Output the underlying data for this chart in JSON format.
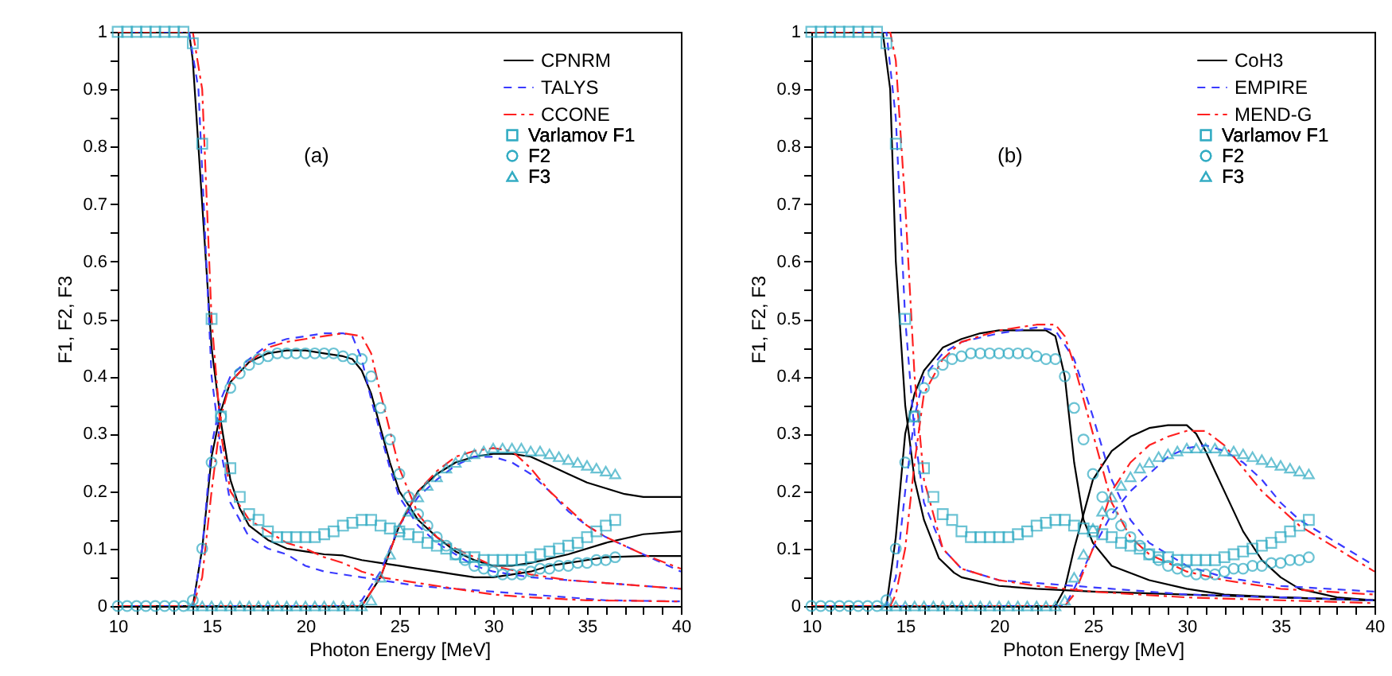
{
  "chart_data": [
    {
      "type": "line",
      "xlabel": "Photon Energy [MeV]",
      "ylabel": "F1, F2, F3",
      "annotations": [
        "(a)"
      ],
      "legend": "top right",
      "grid": false,
      "xlim": [
        10,
        40
      ],
      "ylim": [
        0,
        1
      ],
      "xticks": [
        10,
        {
          "value": 11,
          "label": null
        },
        {
          "value": 12,
          "label": null
        },
        {
          "value": 13,
          "label": null
        },
        {
          "value": 14,
          "label": null
        },
        15,
        {
          "value": 16,
          "label": null
        },
        {
          "value": 17,
          "label": null
        },
        {
          "value": 18,
          "label": null
        },
        {
          "value": 19,
          "label": null
        },
        20,
        {
          "value": 21,
          "label": null
        },
        {
          "value": 22,
          "label": null
        },
        {
          "value": 23,
          "label": null
        },
        {
          "value": 24,
          "label": null
        },
        25,
        {
          "value": 26,
          "label": null
        },
        {
          "value": 27,
          "label": null
        },
        {
          "value": 28,
          "label": null
        },
        {
          "value": 29,
          "label": null
        },
        30,
        {
          "value": 31,
          "label": null
        },
        {
          "value": 32,
          "label": null
        },
        {
          "value": 33,
          "label": null
        },
        {
          "value": 34,
          "label": null
        },
        35,
        {
          "value": 36,
          "label": null
        },
        {
          "value": 37,
          "label": null
        },
        {
          "value": 38,
          "label": null
        },
        {
          "value": 39,
          "label": null
        },
        40
      ],
      "yticks": [
        0,
        {
          "value": 0.05,
          "label": null
        },
        0.1,
        {
          "value": 0.15,
          "label": null
        },
        0.2,
        {
          "value": 0.25,
          "label": null
        },
        0.3,
        {
          "value": 0.35,
          "label": null
        },
        0.4,
        {
          "value": 0.45,
          "label": null
        },
        0.5,
        {
          "value": 0.55,
          "label": null
        },
        0.6,
        {
          "value": 0.65,
          "label": null
        },
        0.7,
        {
          "value": 0.75,
          "label": null
        },
        0.8,
        {
          "value": 0.85,
          "label": null
        },
        0.9,
        {
          "value": 0.95,
          "label": null
        },
        1
      ],
      "series": [
        {
          "name": "CPNRM",
          "color": "#000000",
          "line_style": "solid",
          "x": [
            10,
            13.8,
            14,
            15,
            15.5,
            16,
            16.5,
            17,
            18,
            19,
            20,
            21,
            22,
            23,
            24,
            25,
            26,
            27,
            28,
            29,
            30,
            31,
            32,
            33,
            34,
            35,
            36,
            38,
            40
          ],
          "values": [
            1,
            1,
            0.95,
            0.45,
            0.32,
            0.22,
            0.17,
            0.14,
            0.115,
            0.1,
            0.095,
            0.09,
            0.088,
            0.08,
            0.075,
            0.07,
            0.065,
            0.06,
            0.055,
            0.05,
            0.05,
            0.055,
            0.06,
            0.07,
            0.075,
            0.08,
            0.085,
            0.087,
            0.087
          ]
        },
        {
          "color": "#000000",
          "line_style": "solid",
          "x": [
            10,
            14,
            14.5,
            15,
            15.5,
            16,
            17,
            18,
            19,
            20,
            21,
            22,
            22.5,
            23,
            23.5,
            24,
            24.5,
            25,
            26,
            27,
            28,
            29,
            30,
            31,
            32,
            34,
            36,
            38,
            40
          ],
          "values": [
            0,
            0,
            0.1,
            0.26,
            0.34,
            0.39,
            0.425,
            0.44,
            0.445,
            0.445,
            0.44,
            0.435,
            0.43,
            0.41,
            0.37,
            0.31,
            0.25,
            0.2,
            0.15,
            0.12,
            0.095,
            0.08,
            0.07,
            0.07,
            0.075,
            0.09,
            0.11,
            0.125,
            0.13
          ]
        },
        {
          "color": "#000000",
          "line_style": "solid",
          "x": [
            10,
            23,
            24,
            25,
            26,
            27,
            28,
            29,
            30,
            31,
            32,
            33,
            34,
            35,
            36,
            37,
            38,
            40
          ],
          "values": [
            0,
            0,
            0.05,
            0.14,
            0.2,
            0.23,
            0.25,
            0.26,
            0.265,
            0.265,
            0.26,
            0.245,
            0.23,
            0.215,
            0.205,
            0.195,
            0.19,
            0.19
          ]
        },
        {
          "name": "TALYS",
          "color": "#3a3aff",
          "line_style": "dashed",
          "x": [
            10,
            13.8,
            14.3,
            15,
            15.5,
            16,
            17,
            18,
            19,
            20,
            21,
            22,
            23,
            24,
            26,
            28,
            30,
            32,
            34,
            36,
            40
          ],
          "values": [
            1,
            1,
            0.9,
            0.4,
            0.27,
            0.18,
            0.12,
            0.1,
            0.09,
            0.07,
            0.06,
            0.055,
            0.05,
            0.045,
            0.035,
            0.03,
            0.025,
            0.02,
            0.015,
            0.01,
            0.008
          ]
        },
        {
          "color": "#3a3aff",
          "line_style": "dashed",
          "x": [
            10,
            14,
            14.5,
            15,
            15.5,
            16,
            17,
            18,
            19,
            20,
            21,
            22,
            22.5,
            23,
            23.5,
            24,
            24.5,
            25,
            26,
            27,
            28,
            29,
            30,
            32,
            34,
            36,
            38,
            40
          ],
          "values": [
            0,
            0,
            0.1,
            0.28,
            0.36,
            0.4,
            0.43,
            0.455,
            0.465,
            0.47,
            0.475,
            0.475,
            0.47,
            0.43,
            0.36,
            0.3,
            0.24,
            0.19,
            0.14,
            0.11,
            0.09,
            0.07,
            0.06,
            0.05,
            0.045,
            0.04,
            0.035,
            0.03
          ]
        },
        {
          "color": "#3a3aff",
          "line_style": "dashed",
          "x": [
            10,
            22.5,
            23,
            24,
            25,
            26,
            27,
            28,
            29,
            30,
            31,
            32,
            33,
            34,
            35,
            36,
            38,
            40
          ],
          "values": [
            0,
            0,
            0.01,
            0.06,
            0.14,
            0.19,
            0.22,
            0.245,
            0.26,
            0.26,
            0.25,
            0.23,
            0.2,
            0.165,
            0.14,
            0.12,
            0.09,
            0.06
          ]
        },
        {
          "name": "CCONE",
          "color": "#ff2020",
          "line_style": "dashdot",
          "x": [
            10,
            14,
            14.5,
            15,
            15.5,
            16,
            17,
            18,
            19,
            20,
            21,
            22,
            23,
            24,
            26,
            28,
            30,
            32,
            35,
            40
          ],
          "values": [
            1,
            1,
            0.9,
            0.5,
            0.3,
            0.2,
            0.15,
            0.13,
            0.11,
            0.1,
            0.085,
            0.075,
            0.06,
            0.05,
            0.04,
            0.03,
            0.02,
            0.015,
            0.01,
            0.008
          ]
        },
        {
          "color": "#ff2020",
          "line_style": "dashdot",
          "x": [
            10,
            14,
            14.5,
            15,
            15.5,
            16,
            17,
            18,
            19,
            20,
            21,
            22,
            23,
            23.5,
            24,
            25,
            26,
            27,
            28,
            30,
            32,
            34,
            36,
            40
          ],
          "values": [
            0,
            0,
            0.05,
            0.2,
            0.33,
            0.39,
            0.425,
            0.45,
            0.46,
            0.465,
            0.47,
            0.475,
            0.47,
            0.44,
            0.37,
            0.24,
            0.16,
            0.12,
            0.1,
            0.07,
            0.055,
            0.045,
            0.04,
            0.03
          ]
        },
        {
          "color": "#ff2020",
          "line_style": "dashdot",
          "x": [
            10,
            23,
            24,
            25,
            26,
            27,
            28,
            29,
            30,
            31,
            32,
            33,
            34,
            35,
            36,
            38,
            40
          ],
          "values": [
            0,
            0,
            0.05,
            0.14,
            0.2,
            0.235,
            0.26,
            0.27,
            0.275,
            0.27,
            0.24,
            0.2,
            0.17,
            0.14,
            0.12,
            0.09,
            0.065
          ]
        },
        {
          "name": "Varlamov F1",
          "type": "scatter",
          "marker": "square",
          "color": "#2eaac2",
          "x": [
            10,
            10.5,
            11,
            11.5,
            12,
            12.5,
            13,
            13.5,
            14,
            14.5,
            15,
            15.5,
            16,
            16.5,
            17,
            17.5,
            18,
            18.5,
            19,
            19.5,
            20,
            20.5,
            21,
            21.5,
            22,
            22.5,
            23,
            23.5,
            24,
            24.5,
            25,
            25.5,
            26,
            26.5,
            27,
            27.5,
            28,
            28.5,
            29,
            29.5,
            30,
            30.5,
            31,
            31.5,
            32,
            32.5,
            33,
            33.5,
            34,
            34.5,
            35,
            35.5,
            36,
            36.5
          ],
          "values": [
            1,
            1,
            1,
            1,
            1,
            1,
            1,
            1,
            0.98,
            0.805,
            0.5,
            0.33,
            0.24,
            0.19,
            0.16,
            0.15,
            0.13,
            0.12,
            0.12,
            0.12,
            0.12,
            0.12,
            0.125,
            0.13,
            0.14,
            0.145,
            0.15,
            0.15,
            0.14,
            0.135,
            0.13,
            0.125,
            0.12,
            0.11,
            0.105,
            0.1,
            0.09,
            0.085,
            0.085,
            0.08,
            0.08,
            0.08,
            0.08,
            0.08,
            0.085,
            0.09,
            0.095,
            0.1,
            0.105,
            0.11,
            0.12,
            0.13,
            0.14,
            0.15
          ]
        },
        {
          "name": "F2",
          "type": "scatter",
          "marker": "circle",
          "color": "#2eaac2",
          "x": [
            10,
            10.5,
            11,
            11.5,
            12,
            12.5,
            13,
            13.5,
            14,
            14.5,
            15,
            15.5,
            16,
            16.5,
            17,
            17.5,
            18,
            18.5,
            19,
            19.5,
            20,
            20.5,
            21,
            21.5,
            22,
            22.5,
            23,
            23.5,
            24,
            24.5,
            25,
            25.5,
            26,
            26.5,
            27,
            27.5,
            28,
            28.5,
            29,
            29.5,
            30,
            30.5,
            31,
            31.5,
            32,
            32.5,
            33,
            33.5,
            34,
            34.5,
            35,
            35.5,
            36,
            36.5
          ],
          "values": [
            0,
            0,
            0,
            0,
            0,
            0,
            0,
            0,
            0.01,
            0.1,
            0.25,
            0.33,
            0.38,
            0.405,
            0.42,
            0.43,
            0.435,
            0.44,
            0.44,
            0.44,
            0.44,
            0.44,
            0.44,
            0.44,
            0.435,
            0.43,
            0.43,
            0.4,
            0.345,
            0.29,
            0.23,
            0.19,
            0.16,
            0.14,
            0.12,
            0.105,
            0.09,
            0.08,
            0.07,
            0.065,
            0.06,
            0.055,
            0.055,
            0.055,
            0.06,
            0.065,
            0.065,
            0.07,
            0.07,
            0.075,
            0.075,
            0.08,
            0.08,
            0.085
          ]
        },
        {
          "name": "F3",
          "type": "scatter",
          "marker": "triangle",
          "color": "#2eaac2",
          "x": [
            14,
            14.5,
            15,
            15.5,
            16,
            16.5,
            17,
            17.5,
            18,
            18.5,
            19,
            19.5,
            20,
            20.5,
            21,
            21.5,
            22,
            22.5,
            23,
            23.5,
            24,
            24.5,
            25,
            25.5,
            26,
            26.5,
            27,
            27.5,
            28,
            28.5,
            29,
            29.5,
            30,
            30.5,
            31,
            31.5,
            32,
            32.5,
            33,
            33.5,
            34,
            34.5,
            35,
            35.5,
            36,
            36.5
          ],
          "values": [
            0,
            0,
            0,
            0,
            0,
            0,
            0,
            0,
            0,
            0,
            0,
            0,
            0,
            0,
            0,
            0,
            0,
            0,
            0,
            0.01,
            0.05,
            0.09,
            0.135,
            0.165,
            0.19,
            0.21,
            0.225,
            0.24,
            0.25,
            0.26,
            0.265,
            0.27,
            0.275,
            0.275,
            0.275,
            0.275,
            0.27,
            0.27,
            0.265,
            0.26,
            0.255,
            0.25,
            0.245,
            0.24,
            0.235,
            0.23
          ]
        }
      ]
    },
    {
      "type": "line",
      "xlabel": "Photon Energy [MeV]",
      "ylabel": "F1, F2, F3",
      "annotations": [
        "(b)"
      ],
      "legend": "top right",
      "grid": false,
      "xlim": [
        10,
        40
      ],
      "ylim": [
        0,
        1
      ],
      "xticks": [
        10,
        {
          "value": 11,
          "label": null
        },
        {
          "value": 12,
          "label": null
        },
        {
          "value": 13,
          "label": null
        },
        {
          "value": 14,
          "label": null
        },
        15,
        {
          "value": 16,
          "label": null
        },
        {
          "value": 17,
          "label": null
        },
        {
          "value": 18,
          "label": null
        },
        {
          "value": 19,
          "label": null
        },
        20,
        {
          "value": 21,
          "label": null
        },
        {
          "value": 22,
          "label": null
        },
        {
          "value": 23,
          "label": null
        },
        {
          "value": 24,
          "label": null
        },
        25,
        {
          "value": 26,
          "label": null
        },
        {
          "value": 27,
          "label": null
        },
        {
          "value": 28,
          "label": null
        },
        {
          "value": 29,
          "label": null
        },
        30,
        {
          "value": 31,
          "label": null
        },
        {
          "value": 32,
          "label": null
        },
        {
          "value": 33,
          "label": null
        },
        {
          "value": 34,
          "label": null
        },
        35,
        {
          "value": 36,
          "label": null
        },
        {
          "value": 37,
          "label": null
        },
        {
          "value": 38,
          "label": null
        },
        {
          "value": 39,
          "label": null
        },
        40
      ],
      "yticks": [
        0,
        {
          "value": 0.05,
          "label": null
        },
        0.1,
        {
          "value": 0.15,
          "label": null
        },
        0.2,
        {
          "value": 0.25,
          "label": null
        },
        0.3,
        {
          "value": 0.35,
          "label": null
        },
        0.4,
        {
          "value": 0.45,
          "label": null
        },
        0.5,
        {
          "value": 0.55,
          "label": null
        },
        0.6,
        {
          "value": 0.65,
          "label": null
        },
        0.7,
        {
          "value": 0.75,
          "label": null
        },
        0.8,
        {
          "value": 0.85,
          "label": null
        },
        0.9,
        {
          "value": 0.95,
          "label": null
        },
        1
      ],
      "series": [
        {
          "name": "CoH3",
          "color": "#000000",
          "line_style": "solid",
          "x": [
            10,
            13.8,
            14.2,
            14.5,
            15,
            15.5,
            16,
            16.8,
            17.6,
            18,
            20,
            22,
            25,
            30,
            35,
            40
          ],
          "values": [
            1,
            1,
            0.9,
            0.6,
            0.35,
            0.22,
            0.15,
            0.083,
            0.058,
            0.05,
            0.035,
            0.03,
            0.025,
            0.02,
            0.015,
            0.01
          ]
        },
        {
          "color": "#000000",
          "line_style": "solid",
          "x": [
            10,
            14,
            14.5,
            15,
            15.5,
            16,
            17,
            18,
            19,
            20,
            21,
            22,
            22.5,
            23,
            23.5,
            24,
            24.5,
            25,
            26,
            28,
            30,
            32,
            35,
            40
          ],
          "values": [
            0,
            0,
            0.12,
            0.3,
            0.37,
            0.41,
            0.45,
            0.465,
            0.475,
            0.48,
            0.48,
            0.48,
            0.48,
            0.47,
            0.4,
            0.25,
            0.15,
            0.11,
            0.07,
            0.045,
            0.03,
            0.02,
            0.015,
            0.01
          ]
        },
        {
          "color": "#000000",
          "line_style": "solid",
          "x": [
            10,
            23,
            23.5,
            24,
            25,
            26,
            27,
            28,
            29,
            30,
            30.5,
            31,
            32,
            33,
            34,
            35,
            36,
            38,
            40
          ],
          "values": [
            0,
            0,
            0.03,
            0.1,
            0.22,
            0.27,
            0.295,
            0.31,
            0.315,
            0.315,
            0.3,
            0.27,
            0.2,
            0.13,
            0.08,
            0.05,
            0.03,
            0.015,
            0.01
          ]
        },
        {
          "name": "EMPIRE",
          "color": "#3a3aff",
          "line_style": "dashed",
          "x": [
            10,
            14,
            14.5,
            15,
            15.5,
            16,
            17,
            18,
            20,
            22,
            24,
            26,
            30,
            35,
            40
          ],
          "values": [
            1,
            1,
            0.85,
            0.5,
            0.3,
            0.18,
            0.1,
            0.065,
            0.045,
            0.04,
            0.035,
            0.03,
            0.02,
            0.015,
            0.01
          ]
        },
        {
          "color": "#3a3aff",
          "line_style": "dashed",
          "x": [
            10,
            14,
            14.5,
            15,
            15.5,
            16,
            17,
            18,
            20,
            22,
            23,
            24,
            25,
            26,
            27,
            28,
            30,
            32,
            35,
            40
          ],
          "values": [
            0,
            0,
            0.05,
            0.2,
            0.33,
            0.4,
            0.44,
            0.46,
            0.475,
            0.485,
            0.48,
            0.43,
            0.33,
            0.22,
            0.15,
            0.11,
            0.07,
            0.05,
            0.035,
            0.025
          ]
        },
        {
          "color": "#3a3aff",
          "line_style": "dashed",
          "x": [
            10,
            23.5,
            24,
            25,
            26,
            27,
            28,
            29,
            30,
            31,
            32,
            33,
            34,
            35,
            36,
            38,
            40
          ],
          "values": [
            0,
            0,
            0.03,
            0.1,
            0.16,
            0.2,
            0.23,
            0.26,
            0.275,
            0.28,
            0.27,
            0.25,
            0.22,
            0.18,
            0.15,
            0.11,
            0.07
          ]
        },
        {
          "name": "MEND-G",
          "color": "#ff2020",
          "line_style": "dashdot",
          "x": [
            10,
            14.2,
            14.5,
            15,
            15.5,
            16,
            17,
            18,
            20,
            22,
            25,
            30,
            40
          ],
          "values": [
            1,
            1,
            0.95,
            0.7,
            0.4,
            0.22,
            0.1,
            0.065,
            0.045,
            0.035,
            0.025,
            0.015,
            0.005
          ]
        },
        {
          "color": "#ff2020",
          "line_style": "dashdot",
          "x": [
            10,
            14.2,
            14.5,
            15,
            15.5,
            16,
            17,
            18,
            20,
            22,
            23,
            23.5,
            24,
            25,
            26,
            27,
            28,
            30,
            32,
            35,
            40
          ],
          "values": [
            0,
            0,
            0.02,
            0.1,
            0.25,
            0.37,
            0.43,
            0.46,
            0.48,
            0.49,
            0.49,
            0.47,
            0.42,
            0.3,
            0.18,
            0.12,
            0.09,
            0.06,
            0.045,
            0.03,
            0.02
          ]
        },
        {
          "color": "#ff2020",
          "line_style": "dashdot",
          "x": [
            10,
            23.5,
            24,
            25,
            26,
            27,
            28,
            29,
            30,
            31,
            32,
            33,
            34,
            35,
            36,
            38,
            40
          ],
          "values": [
            0,
            0,
            0.02,
            0.1,
            0.2,
            0.25,
            0.28,
            0.295,
            0.305,
            0.305,
            0.28,
            0.24,
            0.2,
            0.17,
            0.14,
            0.1,
            0.06
          ]
        },
        {
          "name": "Varlamov F1",
          "type": "scatter",
          "marker": "square",
          "color": "#2eaac2",
          "x": [
            10,
            10.5,
            11,
            11.5,
            12,
            12.5,
            13,
            13.5,
            14,
            14.5,
            15,
            15.5,
            16,
            16.5,
            17,
            17.5,
            18,
            18.5,
            19,
            19.5,
            20,
            20.5,
            21,
            21.5,
            22,
            22.5,
            23,
            23.5,
            24,
            24.5,
            25,
            25.5,
            26,
            26.5,
            27,
            27.5,
            28,
            28.5,
            29,
            29.5,
            30,
            30.5,
            31,
            31.5,
            32,
            32.5,
            33,
            33.5,
            34,
            34.5,
            35,
            35.5,
            36,
            36.5
          ],
          "values": [
            1,
            1,
            1,
            1,
            1,
            1,
            1,
            1,
            0.98,
            0.805,
            0.5,
            0.33,
            0.24,
            0.19,
            0.16,
            0.15,
            0.13,
            0.12,
            0.12,
            0.12,
            0.12,
            0.12,
            0.125,
            0.13,
            0.14,
            0.145,
            0.15,
            0.15,
            0.14,
            0.135,
            0.13,
            0.125,
            0.12,
            0.11,
            0.105,
            0.1,
            0.09,
            0.085,
            0.085,
            0.08,
            0.08,
            0.08,
            0.08,
            0.08,
            0.085,
            0.09,
            0.095,
            0.1,
            0.105,
            0.11,
            0.12,
            0.13,
            0.14,
            0.15
          ]
        },
        {
          "name": "F2",
          "type": "scatter",
          "marker": "circle",
          "color": "#2eaac2",
          "x": [
            10,
            10.5,
            11,
            11.5,
            12,
            12.5,
            13,
            13.5,
            14,
            14.5,
            15,
            15.5,
            16,
            16.5,
            17,
            17.5,
            18,
            18.5,
            19,
            19.5,
            20,
            20.5,
            21,
            21.5,
            22,
            22.5,
            23,
            23.5,
            24,
            24.5,
            25,
            25.5,
            26,
            26.5,
            27,
            27.5,
            28,
            28.5,
            29,
            29.5,
            30,
            30.5,
            31,
            31.5,
            32,
            32.5,
            33,
            33.5,
            34,
            34.5,
            35,
            35.5,
            36,
            36.5
          ],
          "values": [
            0,
            0,
            0,
            0,
            0,
            0,
            0,
            0,
            0.01,
            0.1,
            0.25,
            0.33,
            0.38,
            0.405,
            0.42,
            0.43,
            0.435,
            0.44,
            0.44,
            0.44,
            0.44,
            0.44,
            0.44,
            0.44,
            0.435,
            0.43,
            0.43,
            0.4,
            0.345,
            0.29,
            0.23,
            0.19,
            0.16,
            0.14,
            0.12,
            0.105,
            0.09,
            0.08,
            0.07,
            0.065,
            0.06,
            0.055,
            0.055,
            0.055,
            0.06,
            0.065,
            0.065,
            0.07,
            0.07,
            0.075,
            0.075,
            0.08,
            0.08,
            0.085
          ]
        },
        {
          "name": "F3",
          "type": "scatter",
          "marker": "triangle",
          "color": "#2eaac2",
          "x": [
            14,
            14.5,
            15,
            15.5,
            16,
            16.5,
            17,
            17.5,
            18,
            18.5,
            19,
            19.5,
            20,
            20.5,
            21,
            21.5,
            22,
            22.5,
            23,
            23.5,
            24,
            24.5,
            25,
            25.5,
            26,
            26.5,
            27,
            27.5,
            28,
            28.5,
            29,
            29.5,
            30,
            30.5,
            31,
            31.5,
            32,
            32.5,
            33,
            33.5,
            34,
            34.5,
            35,
            35.5,
            36,
            36.5
          ],
          "values": [
            0,
            0,
            0,
            0,
            0,
            0,
            0,
            0,
            0,
            0,
            0,
            0,
            0,
            0,
            0,
            0,
            0,
            0,
            0,
            0.01,
            0.05,
            0.09,
            0.135,
            0.165,
            0.19,
            0.21,
            0.225,
            0.24,
            0.25,
            0.26,
            0.265,
            0.27,
            0.275,
            0.275,
            0.275,
            0.275,
            0.27,
            0.27,
            0.265,
            0.26,
            0.255,
            0.25,
            0.245,
            0.24,
            0.235,
            0.23
          ]
        }
      ]
    }
  ]
}
